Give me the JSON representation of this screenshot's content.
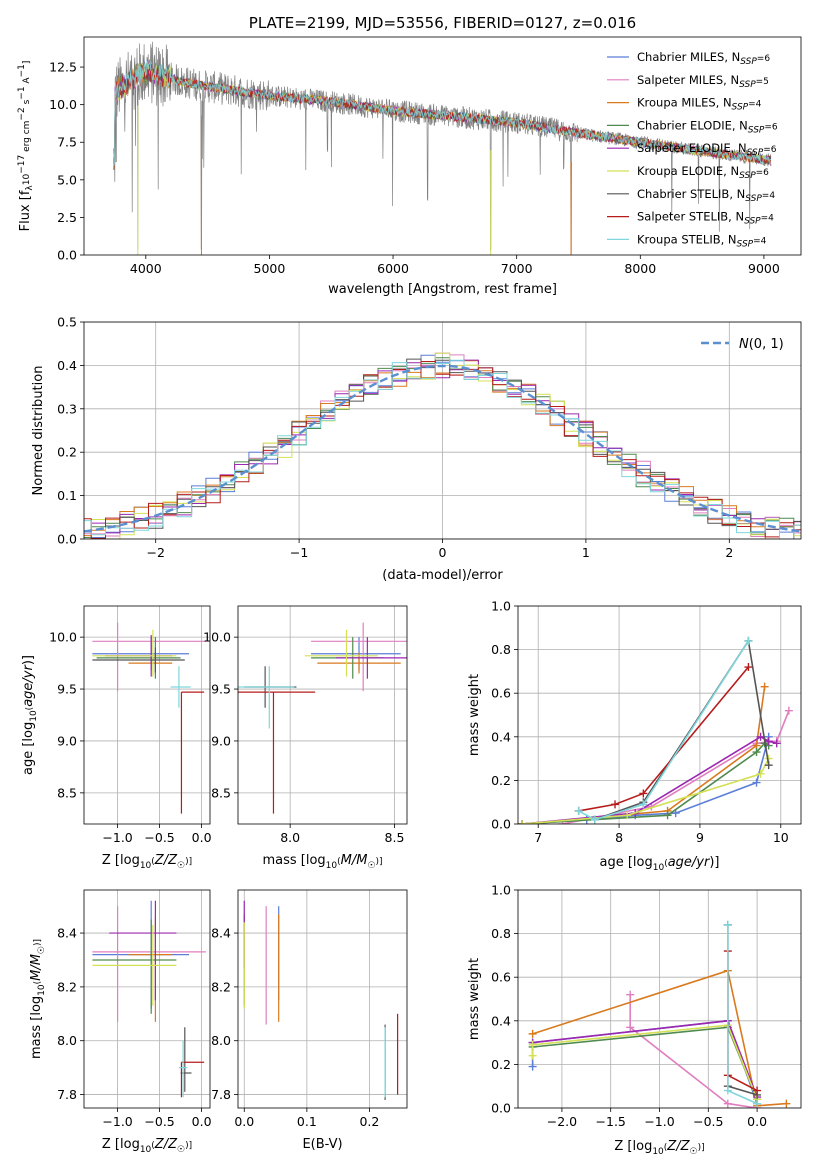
{
  "colors": [
    "#5b7ed8",
    "#e07fc0",
    "#d97a1e",
    "#4f8a4f",
    "#9c27b0",
    "#d4e157",
    "#555555",
    "#b71c1c",
    "#7fd6dc"
  ],
  "spectrum_models": [
    "Chabrier MILES, N_SSP=6",
    "Salpeter MILES, N_SSP=5",
    "Kroupa MILES, N_SSP=4",
    "Chabrier ELODIE, N_SSP=6",
    "Salpeter ELODIE, N_SSP=6",
    "Kroupa ELODIE, N_SSP=6",
    "Chabrier STELIB, N_SSP=4",
    "Salpeter STELIB, N_SSP=4",
    "Kroupa STELIB, N_SSP=4"
  ],
  "chart_data": [
    {
      "id": "spectrum",
      "type": "line",
      "title": "PLATE=2199, MJD=53556, FIBERID=0127, z=0.016",
      "xlabel": "wavelength [Angstrom, rest frame]",
      "ylabel": "Flux [f_λ 10^-17 erg cm^-2 s^-1 A^-1]",
      "xlim": [
        3500,
        9300
      ],
      "ylim": [
        0,
        14.5
      ],
      "xticks": [
        4000,
        5000,
        6000,
        7000,
        8000,
        9000
      ],
      "yticks": [
        0.0,
        2.5,
        5.0,
        7.5,
        10.0,
        12.5
      ],
      "xtick_labels": [
        "4000",
        "5000",
        "6000",
        "7000",
        "8000",
        "9000"
      ],
      "ytick_labels": [
        "0.0",
        "2.5",
        "5.0",
        "7.5",
        "10.0",
        "12.5"
      ],
      "series_names": [
        "Chabrier MILES, N_SSP=6",
        "Salpeter MILES, N_SSP=5",
        "Kroupa MILES, N_SSP=4",
        "Chabrier ELODIE, N_SSP=6",
        "Salpeter ELODIE, N_SSP=6",
        "Kroupa ELODIE, N_SSP=6",
        "Chabrier STELIB, N_SSP=4",
        "Salpeter STELIB, N_SSP=4",
        "Kroupa STELIB, N_SSP=4"
      ],
      "continuum": {
        "x": [
          3750,
          3900,
          4000,
          4100,
          4300,
          4500,
          5000,
          5500,
          6000,
          6500,
          7000,
          7500,
          8000,
          8500,
          9050
        ],
        "y": [
          10.8,
          11.8,
          12.2,
          12.0,
          11.5,
          11.2,
          10.6,
          10.2,
          9.6,
          9.2,
          8.8,
          8.1,
          7.5,
          6.9,
          6.3
        ]
      },
      "dips": [
        [
          3760,
          6.1
        ],
        [
          3890,
          2.8
        ],
        [
          3935,
          0.0
        ],
        [
          4100,
          4.3
        ],
        [
          4450,
          0.0
        ],
        [
          6790,
          0.0
        ],
        [
          7440,
          0.0
        ],
        [
          5470,
          6.7
        ],
        [
          6280,
          3.6
        ],
        [
          6530,
          8.8
        ],
        [
          7380,
          5.4
        ],
        [
          8700,
          6.3
        ]
      ],
      "legend_position": "top-right"
    },
    {
      "id": "residuals",
      "type": "histogram",
      "xlabel": "(data-model)/error",
      "ylabel": "Normed distribution",
      "xlim": [
        -2.5,
        2.5
      ],
      "ylim": [
        0,
        0.5
      ],
      "xticks": [
        -2,
        -1,
        0,
        1,
        2
      ],
      "yticks": [
        0.0,
        0.1,
        0.2,
        0.3,
        0.4,
        0.5
      ],
      "xtick_labels": [
        "−2",
        "−1",
        "0",
        "1",
        "2"
      ],
      "ytick_labels": [
        "0.0",
        "0.1",
        "0.2",
        "0.3",
        "0.4",
        "0.5"
      ],
      "bin_width": 0.1,
      "reference_curve": {
        "name": "N(0,1)",
        "sigma": 1.0,
        "style": "dashed"
      },
      "grid": true,
      "legend_position": "top-right"
    },
    {
      "id": "age_vs_Z",
      "type": "errorbar",
      "xlabel": "Z [log10(Z/Z☉)]",
      "ylabel": "age [log10(age/yr)]",
      "xlim": [
        -1.4,
        0.1
      ],
      "ylim": [
        8.2,
        10.3
      ],
      "xticks": [
        -1.0,
        -0.5,
        0.0
      ],
      "yticks": [
        8.5,
        9.0,
        9.5,
        10.0
      ],
      "xtick_labels": [
        "−1.0",
        "−0.5",
        "0.0"
      ],
      "ytick_labels": [
        "8.5",
        "9.0",
        "9.5",
        "10.0"
      ],
      "points": [
        {
          "x": -0.6,
          "y": 9.84,
          "xerr": [
            0.7,
            0.45
          ],
          "yerr": [
            0.16,
            0.16
          ]
        },
        {
          "x": -1.0,
          "y": 9.96,
          "xerr": [
            0.3,
            1.05
          ],
          "yerr": [
            0.48,
            0.18
          ]
        },
        {
          "x": -0.55,
          "y": 9.75,
          "xerr": [
            0.32,
            0.2
          ],
          "yerr": [
            0.1,
            0.1
          ]
        },
        {
          "x": -0.55,
          "y": 9.8,
          "xerr": [
            0.7,
            0.3
          ],
          "yerr": [
            0.2,
            0.2
          ]
        },
        {
          "x": -0.6,
          "y": 9.82,
          "xerr": [
            0.55,
            0.25
          ],
          "yerr": [
            0.2,
            0.2
          ]
        },
        {
          "x": -0.58,
          "y": 9.82,
          "xerr": [
            0.72,
            0.28
          ],
          "yerr": [
            0.2,
            0.25
          ]
        },
        {
          "x": -0.55,
          "y": 9.78,
          "xerr": [
            0.75,
            0.35
          ],
          "yerr": [
            0.12,
            0.12
          ]
        },
        {
          "x": -0.24,
          "y": 9.47,
          "xerr": [
            0.0,
            0.27
          ],
          "yerr": [
            1.17,
            0.0
          ]
        },
        {
          "x": -0.27,
          "y": 9.52,
          "xerr": [
            0.1,
            0.14
          ],
          "yerr": [
            0.2,
            0.2
          ]
        }
      ],
      "grid": true
    },
    {
      "id": "age_vs_mass",
      "type": "errorbar",
      "xlabel": "mass [log10(M/M☉)]",
      "ylabel": "",
      "xlim": [
        7.75,
        8.56
      ],
      "ylim": [
        8.2,
        10.3
      ],
      "xticks": [
        8.0,
        8.5
      ],
      "yticks": [
        8.5,
        9.0,
        9.5,
        10.0
      ],
      "xtick_labels": [
        "8.0",
        "8.5"
      ],
      "ytick_labels": [
        "8.5",
        "9.0",
        "9.5",
        "10.0"
      ],
      "points": [
        {
          "x": 8.33,
          "y": 9.84,
          "xerr": [
            0.23,
            0.2
          ],
          "yerr": [
            0.16,
            0.16
          ]
        },
        {
          "x": 8.35,
          "y": 9.96,
          "xerr": [
            0.25,
            0.22
          ],
          "yerr": [
            0.48,
            0.18
          ]
        },
        {
          "x": 8.33,
          "y": 9.75,
          "xerr": [
            0.2,
            0.2
          ],
          "yerr": [
            0.1,
            0.1
          ]
        },
        {
          "x": 8.3,
          "y": 9.8,
          "xerr": [
            0.2,
            0.15
          ],
          "yerr": [
            0.2,
            0.2
          ]
        },
        {
          "x": 8.37,
          "y": 9.8,
          "xerr": [
            0.15,
            0.2
          ],
          "yerr": [
            0.2,
            0.2
          ]
        },
        {
          "x": 8.27,
          "y": 9.82,
          "xerr": [
            0.2,
            0.15
          ],
          "yerr": [
            0.2,
            0.25
          ]
        },
        {
          "x": 7.88,
          "y": 9.52,
          "xerr": [
            0.1,
            0.15
          ],
          "yerr": [
            0.2,
            0.2
          ]
        },
        {
          "x": 7.92,
          "y": 9.47,
          "xerr": [
            0.2,
            0.2
          ],
          "yerr": [
            1.17,
            0.0
          ]
        },
        {
          "x": 7.9,
          "y": 9.52,
          "xerr": [
            0.15,
            0.12
          ],
          "yerr": [
            0.4,
            0.2
          ]
        }
      ],
      "grid": true
    },
    {
      "id": "weight_vs_age",
      "type": "line",
      "xlabel": "age [log10(age/yr)]",
      "ylabel": "mass weight",
      "xlim": [
        6.75,
        10.25
      ],
      "ylim": [
        0,
        1.0
      ],
      "xticks": [
        7,
        8,
        9,
        10
      ],
      "yticks": [
        0.0,
        0.2,
        0.4,
        0.6,
        0.8,
        1.0
      ],
      "xtick_labels": [
        "7",
        "8",
        "9",
        "10"
      ],
      "ytick_labels": [
        "0.0",
        "0.2",
        "0.4",
        "0.6",
        "0.8",
        "1.0"
      ],
      "series": [
        {
          "name": "Chabrier MILES, N_SSP=6",
          "x": [
            6.8,
            7.6,
            8.2,
            8.7,
            9.7,
            9.85
          ],
          "y": [
            0.0,
            0.02,
            0.04,
            0.05,
            0.19,
            0.4
          ]
        },
        {
          "name": "Salpeter MILES, N_SSP=5",
          "x": [
            7.3,
            8.4,
            9.7,
            9.95,
            10.1
          ],
          "y": [
            0.0,
            0.08,
            0.37,
            0.38,
            0.52
          ]
        },
        {
          "name": "Kroupa MILES, N_SSP=4",
          "x": [
            6.8,
            8.6,
            9.7,
            9.8
          ],
          "y": [
            0.0,
            0.06,
            0.36,
            0.63
          ]
        },
        {
          "name": "Chabrier ELODIE, N_SSP=6",
          "x": [
            6.8,
            7.7,
            8.6,
            9.7,
            9.8,
            9.85
          ],
          "y": [
            0.0,
            0.02,
            0.04,
            0.33,
            0.37,
            0.36
          ]
        },
        {
          "name": "Salpeter ELODIE, N_SSP=6",
          "x": [
            6.8,
            8.2,
            9.75,
            9.85,
            9.95
          ],
          "y": [
            0.0,
            0.05,
            0.4,
            0.38,
            0.37
          ]
        },
        {
          "name": "Kroupa ELODIE, N_SSP=6",
          "x": [
            6.8,
            8.1,
            9.75,
            9.85
          ],
          "y": [
            0.0,
            0.04,
            0.23,
            0.3
          ]
        },
        {
          "name": "Chabrier STELIB, N_SSP=4",
          "x": [
            7.7,
            8.3,
            9.6,
            9.85
          ],
          "y": [
            0.02,
            0.1,
            0.84,
            0.27
          ]
        },
        {
          "name": "Salpeter STELIB, N_SSP=4",
          "x": [
            7.5,
            7.95,
            8.3,
            9.6
          ],
          "y": [
            0.06,
            0.09,
            0.14,
            0.72
          ]
        },
        {
          "name": "Kroupa STELIB, N_SSP=4",
          "x": [
            7.5,
            7.7,
            8.3,
            9.6
          ],
          "y": [
            0.06,
            0.02,
            0.09,
            0.84
          ]
        }
      ],
      "grid": true
    },
    {
      "id": "mass_vs_Z",
      "type": "errorbar",
      "xlabel": "Z [log10(Z/Z☉)]",
      "ylabel": "mass [log10(M/M☉)]",
      "xlim": [
        -1.4,
        0.1
      ],
      "ylim": [
        7.75,
        8.56
      ],
      "xticks": [
        -1.0,
        -0.5,
        0.0
      ],
      "yticks": [
        7.8,
        8.0,
        8.2,
        8.4
      ],
      "xtick_labels": [
        "−1.0",
        "−0.5",
        "0.0"
      ],
      "ytick_labels": [
        "7.8",
        "8.0",
        "8.2",
        "8.4"
      ],
      "points": [
        {
          "x": -0.6,
          "y": 8.32,
          "xerr": [
            0.7,
            0.45
          ],
          "yerr": [
            0.2,
            0.2
          ]
        },
        {
          "x": -1.0,
          "y": 8.33,
          "xerr": [
            0.3,
            1.05
          ],
          "yerr": [
            0.26,
            0.17
          ]
        },
        {
          "x": -0.55,
          "y": 8.32,
          "xerr": [
            0.32,
            0.2
          ],
          "yerr": [
            0.25,
            0.14
          ]
        },
        {
          "x": -0.6,
          "y": 8.3,
          "xerr": [
            0.7,
            0.3
          ],
          "yerr": [
            0.2,
            0.15
          ]
        },
        {
          "x": -0.55,
          "y": 8.4,
          "xerr": [
            0.55,
            0.25
          ],
          "yerr": [
            0.25,
            0.12
          ]
        },
        {
          "x": -0.58,
          "y": 8.28,
          "xerr": [
            0.72,
            0.28
          ],
          "yerr": [
            0.15,
            0.15
          ]
        },
        {
          "x": -0.2,
          "y": 7.88,
          "xerr": [
            0.05,
            0.08
          ],
          "yerr": [
            0.07,
            0.17
          ]
        },
        {
          "x": -0.24,
          "y": 7.92,
          "xerr": [
            0.0,
            0.27
          ],
          "yerr": [
            0.13,
            0.0
          ]
        },
        {
          "x": -0.22,
          "y": 7.9,
          "xerr": [
            0.05,
            0.05
          ],
          "yerr": [
            0.11,
            0.1
          ]
        }
      ],
      "grid": true
    },
    {
      "id": "mass_vs_EBV",
      "type": "errorbar",
      "xlabel": "E(B-V)",
      "ylabel": "",
      "xlim": [
        -0.01,
        0.26
      ],
      "ylim": [
        7.75,
        8.56
      ],
      "xticks": [
        0.0,
        0.1,
        0.2
      ],
      "yticks": [
        7.8,
        8.0,
        8.2,
        8.4
      ],
      "xtick_labels": [
        "0.0",
        "0.1",
        "0.2"
      ],
      "ytick_labels": [
        "7.8",
        "8.0",
        "8.2",
        "8.4"
      ],
      "points": [
        {
          "x": 0.055,
          "y": 8.3,
          "yerr": [
            0.15,
            0.2
          ]
        },
        {
          "x": 0.035,
          "y": 8.28,
          "yerr": [
            0.22,
            0.22
          ]
        },
        {
          "x": 0.055,
          "y": 8.27,
          "yerr": [
            0.2,
            0.2
          ]
        },
        {
          "x": 0.0,
          "y": 8.3,
          "yerr": [
            0.17,
            0.17
          ]
        },
        {
          "x": 0.0,
          "y": 8.42,
          "yerr": [
            0.15,
            0.1
          ]
        },
        {
          "x": 0.0,
          "y": 8.28,
          "yerr": [
            0.16,
            0.16
          ]
        },
        {
          "x": 0.225,
          "y": 7.92,
          "yerr": [
            0.14,
            0.14
          ]
        },
        {
          "x": 0.245,
          "y": 7.95,
          "yerr": [
            0.15,
            0.15
          ]
        },
        {
          "x": 0.225,
          "y": 7.92,
          "yerr": [
            0.13,
            0.13
          ]
        }
      ],
      "grid": true
    },
    {
      "id": "weight_vs_Z",
      "type": "line",
      "xlabel": "Z [log10(Z/Z☉)]",
      "ylabel": "mass weight",
      "xlim": [
        -2.45,
        0.45
      ],
      "ylim": [
        0,
        1.0
      ],
      "xticks": [
        -2.0,
        -1.5,
        -1.0,
        -0.5,
        0.0
      ],
      "yticks": [
        0.0,
        0.2,
        0.4,
        0.6,
        0.8,
        1.0
      ],
      "xtick_labels": [
        "−2.0",
        "−1.5",
        "−1.0",
        "−0.5",
        "0.0"
      ],
      "ytick_labels": [
        "0.0",
        "0.2",
        "0.4",
        "0.6",
        "0.8",
        "1.0"
      ],
      "series": [
        {
          "name": "Chabrier MILES, N_SSP=6",
          "x": [
            -2.3,
            -2.3,
            -0.3,
            0.0
          ],
          "y": [
            0.19,
            0.3,
            0.4,
            0.02
          ]
        },
        {
          "name": "Salpeter MILES, N_SSP=5",
          "x": [
            -1.3,
            -1.3,
            -0.3,
            0.0
          ],
          "y": [
            0.52,
            0.37,
            0.02,
            0.0
          ]
        },
        {
          "name": "Kroupa MILES, N_SSP=4",
          "x": [
            -2.3,
            -0.3,
            0.0,
            0.3
          ],
          "y": [
            0.34,
            0.63,
            0.01,
            0.02
          ]
        },
        {
          "name": "Chabrier ELODIE, N_SSP=6",
          "x": [
            -2.3,
            -0.3,
            0.0
          ],
          "y": [
            0.28,
            0.37,
            0.04
          ]
        },
        {
          "name": "Salpeter ELODIE, N_SSP=6",
          "x": [
            -2.3,
            -0.3,
            0.0
          ],
          "y": [
            0.3,
            0.4,
            0.05
          ]
        },
        {
          "name": "Kroupa ELODIE, N_SSP=6",
          "x": [
            -2.3,
            -2.3,
            -0.3,
            0.0
          ],
          "y": [
            0.24,
            0.29,
            0.38,
            0.04
          ]
        },
        {
          "name": "Chabrier STELIB, N_SSP=4",
          "x": [
            -0.3,
            -0.3,
            0.0
          ],
          "y": [
            0.84,
            0.1,
            0.06
          ]
        },
        {
          "name": "Salpeter STELIB, N_SSP=4",
          "x": [
            -0.3,
            -0.3,
            0.0
          ],
          "y": [
            0.72,
            0.15,
            0.08
          ]
        },
        {
          "name": "Kroupa STELIB, N_SSP=4",
          "x": [
            -0.3,
            -0.3,
            0.0
          ],
          "y": [
            0.84,
            0.08,
            0.02
          ]
        }
      ],
      "grid": true
    }
  ]
}
